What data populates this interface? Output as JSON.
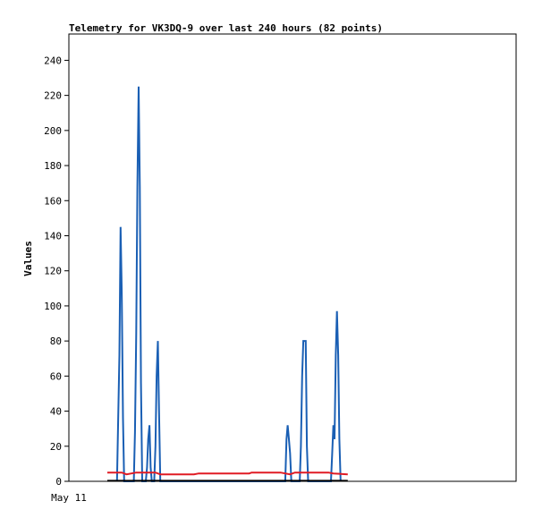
{
  "chart_data": {
    "type": "line",
    "title": "Telemetry for VK3DQ-9 over last 240 hours (82 points)",
    "ylabel": "Values",
    "xlabel": "",
    "x_tick_labels": [
      "May 11"
    ],
    "y_ticks": [
      0,
      20,
      40,
      60,
      80,
      100,
      120,
      140,
      160,
      180,
      200,
      220,
      240
    ],
    "ylim": [
      0,
      255
    ],
    "grid": false,
    "legend": "none",
    "series": [
      {
        "color": "#1a5fb4",
        "points": [
          [
            20,
            0
          ],
          [
            21,
            72
          ],
          [
            21.5,
            145
          ],
          [
            22,
            108
          ],
          [
            22.5,
            36
          ],
          [
            23,
            0
          ],
          [
            27,
            0
          ],
          [
            27.5,
            28
          ],
          [
            28,
            84
          ],
          [
            28.5,
            168
          ],
          [
            29,
            225
          ],
          [
            29.5,
            168
          ],
          [
            30,
            56
          ],
          [
            30.5,
            0
          ],
          [
            32,
            0
          ],
          [
            32.5,
            8
          ],
          [
            33,
            24
          ],
          [
            33.5,
            32
          ],
          [
            34,
            8
          ],
          [
            34.5,
            0
          ],
          [
            35.5,
            0
          ],
          [
            36,
            20
          ],
          [
            36.5,
            60
          ],
          [
            37,
            80
          ],
          [
            37.5,
            40
          ],
          [
            38,
            0
          ],
          [
            90,
            0
          ],
          [
            90.5,
            24
          ],
          [
            91,
            32
          ],
          [
            91.5,
            24
          ],
          [
            92,
            16
          ],
          [
            92.5,
            0
          ],
          [
            96,
            0
          ],
          [
            96.5,
            20
          ],
          [
            97,
            60
          ],
          [
            97.5,
            80
          ],
          [
            98.5,
            80
          ],
          [
            99,
            20
          ],
          [
            99.5,
            0
          ],
          [
            109,
            0
          ],
          [
            109.5,
            16
          ],
          [
            110,
            32
          ],
          [
            110.5,
            24
          ],
          [
            111,
            72
          ],
          [
            111.5,
            97
          ],
          [
            112,
            72
          ],
          [
            112.5,
            24
          ],
          [
            113,
            0
          ]
        ]
      },
      {
        "color": "#e01b24",
        "points": [
          [
            16,
            5
          ],
          [
            22,
            5
          ],
          [
            24,
            4
          ],
          [
            28,
            5
          ],
          [
            36,
            5
          ],
          [
            38,
            4
          ],
          [
            52,
            4
          ],
          [
            54,
            4.5
          ],
          [
            75,
            4.5
          ],
          [
            76,
            5
          ],
          [
            88,
            5
          ],
          [
            92,
            4
          ],
          [
            94,
            5
          ],
          [
            108,
            5
          ],
          [
            110,
            4.5
          ],
          [
            116,
            4
          ]
        ]
      },
      {
        "color": "#000000",
        "points": [
          [
            16,
            0.3
          ],
          [
            116,
            0.3
          ]
        ]
      }
    ],
    "xlim": [
      0,
      186
    ]
  }
}
